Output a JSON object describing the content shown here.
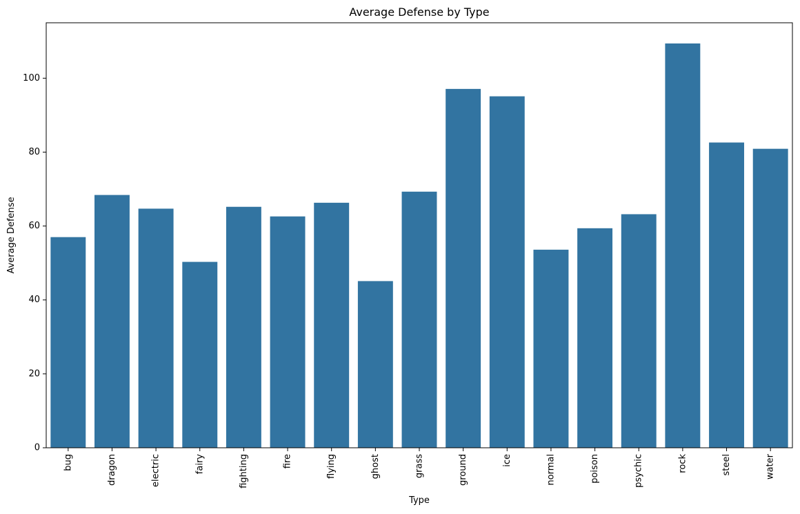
{
  "chart_data": {
    "type": "bar",
    "title": "Average Defense by Type",
    "xlabel": "Type",
    "ylabel": "Average Defense",
    "categories": [
      "bug",
      "dragon",
      "electric",
      "fairy",
      "fighting",
      "fire",
      "flying",
      "ghost",
      "grass",
      "ground",
      "ice",
      "normal",
      "poison",
      "psychic",
      "rock",
      "steel",
      "water"
    ],
    "values": [
      57.0,
      68.4,
      64.7,
      50.3,
      65.2,
      62.6,
      66.3,
      45.1,
      69.3,
      97.1,
      95.1,
      53.6,
      59.4,
      63.2,
      109.4,
      82.6,
      80.9
    ],
    "ylim": [
      0,
      115
    ],
    "yticks": [
      0,
      20,
      40,
      60,
      80,
      100
    ],
    "grid": false,
    "legend": "none",
    "bar_color": "#3274a1"
  }
}
